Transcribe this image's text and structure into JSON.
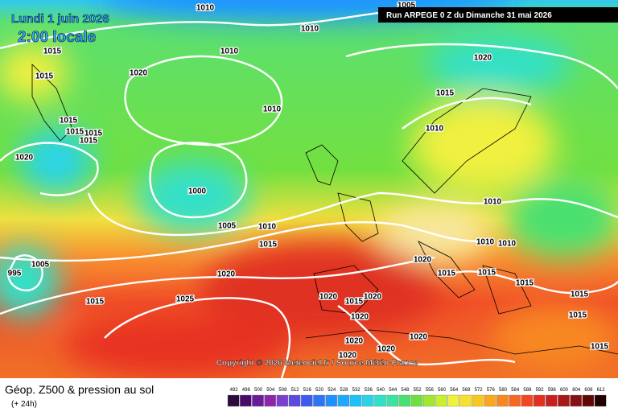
{
  "header": {
    "date": "Lundi 1 juin 2026",
    "time": "2:00 locale",
    "run": "Run ARPEGE 0 Z du Dimanche 31 mai 2026"
  },
  "isobar_labels": [
    "1010",
    "1005",
    "1010",
    "1015",
    "1010",
    "1020",
    "1015",
    "1020",
    "1015",
    "1010",
    "1015",
    "1015",
    "1015",
    "1015",
    "1010",
    "1020",
    "1000",
    "1010",
    "1005",
    "1010",
    "1015",
    "1010",
    "1010",
    "1020",
    "1020",
    "1015",
    "1015",
    "1005",
    "1015",
    "995",
    "1015",
    "1020",
    "1015",
    "1020",
    "1015",
    "1025",
    "1020",
    "1015",
    "1020",
    "1020",
    "1020",
    "1015",
    "1020"
  ],
  "copyright": "Copyright © 2026 Meteociel.fr / Source Météo-France",
  "footer": {
    "title": "Géop. Z500 & pression au sol",
    "lead": "(+ 24h)"
  },
  "legend": {
    "levels": [
      "492",
      "496",
      "500",
      "504",
      "508",
      "512",
      "516",
      "520",
      "524",
      "528",
      "532",
      "536",
      "540",
      "544",
      "548",
      "552",
      "556",
      "560",
      "564",
      "568",
      "572",
      "576",
      "580",
      "584",
      "588",
      "592",
      "596",
      "600",
      "604",
      "608",
      "612"
    ],
    "colors": [
      "#2b0a3d",
      "#4a0c6b",
      "#6a1b9a",
      "#8e24aa",
      "#7b3fd0",
      "#5b4ae0",
      "#3d5af0",
      "#2f74f5",
      "#1e90ff",
      "#1ea8ff",
      "#20c0f8",
      "#2ad4e8",
      "#30e0c8",
      "#38e4a0",
      "#48e070",
      "#70e040",
      "#a0e830",
      "#c8f030",
      "#f0f040",
      "#f8e030",
      "#f8c820",
      "#f8a820",
      "#f88820",
      "#f86820",
      "#f04820",
      "#e03020",
      "#c82020",
      "#a81818",
      "#881010",
      "#600808",
      "#200000"
    ]
  }
}
